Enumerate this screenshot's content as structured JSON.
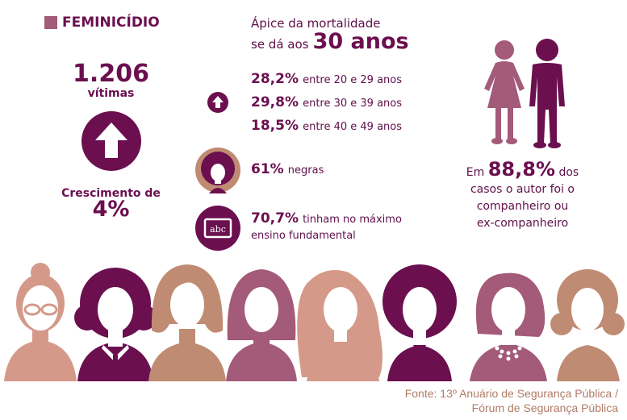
{
  "title": "FEMINICÍDIO",
  "victims": {
    "number": "1.206",
    "label": "vítimas"
  },
  "growth": {
    "label": "Crescimento de",
    "value": "4%"
  },
  "peak": {
    "line1": "Ápice da mortalidade",
    "line2_prefix": "se dá aos",
    "line2_value": "30 anos"
  },
  "age_ranges": [
    {
      "pct": "28,2%",
      "text": "entre 20 e 29 anos"
    },
    {
      "pct": "29,8%",
      "text": "entre 30 e 39 anos"
    },
    {
      "pct": "18,5%",
      "text": "entre 40 e 49 anos"
    }
  ],
  "black": {
    "pct": "61%",
    "text": "negras"
  },
  "education": {
    "pct": "70,7%",
    "text1": "tinham no máximo",
    "text2": "ensino fundamental",
    "icon_text": "abc"
  },
  "author": {
    "prefix": "Em",
    "pct": "88,8%",
    "suffix": "dos",
    "line2": "casos o autor foi o",
    "line3": "companheiro ou",
    "line4": "ex-companheiro"
  },
  "source": {
    "line1": "Fonte: 13º Anuário de Segurança Pública /",
    "line2": "Fórum de Segurança Pública"
  },
  "colors": {
    "primary": "#6b0f4f",
    "mauve": "#a45a79",
    "skin": "#d5998a",
    "tan": "#c08b73",
    "text": "#5f0f4a",
    "source": "#b07b66"
  }
}
